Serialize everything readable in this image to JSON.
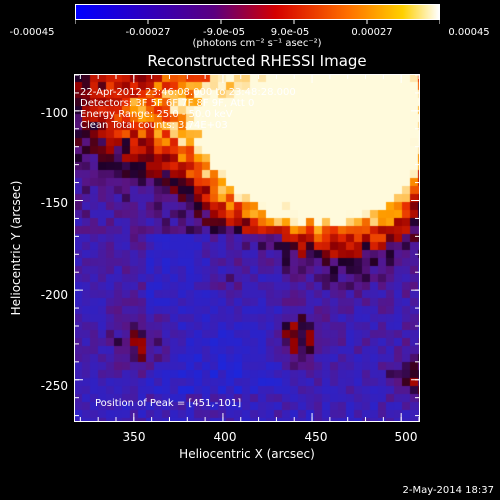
{
  "colorbar": {
    "tick_labels": [
      "-0.00045",
      "-0.00027",
      "-9.0e-05",
      "9.0e-05",
      "0.00027",
      "0.00045"
    ],
    "tick_values": [
      -0.00045,
      -0.00027,
      -9e-05,
      9e-05,
      0.00027,
      0.00045
    ],
    "unit_label": "(photons cm⁻² s⁻¹ asec⁻²)",
    "colors": [
      "#0000ff",
      "#5a0080",
      "#cc0000",
      "#ff6000",
      "#ffffff"
    ]
  },
  "title": "Reconstructed RHESSI Image",
  "info_lines": [
    "22-Apr-2012 23:46:08.000 to 23:48:28.000",
    "Detectors: 3F 5F 6F 7F 8F 9F, Att 0",
    "Energy Range: 25.0 - 50.0 keV",
    "Clean    Total counts: 3.74E+03"
  ],
  "peak_label": "Position of Peak = [451,-101]",
  "axes": {
    "x_title": "Heliocentric X (arcsec)",
    "y_title": "Heliocentric Y (arcsec)",
    "x_ticks": [
      "350",
      "400",
      "450",
      "500"
    ],
    "x_tick_values": [
      350,
      400,
      450,
      500
    ],
    "y_ticks": [
      "-100",
      "-150",
      "-200",
      "-250"
    ],
    "y_tick_values": [
      -100,
      -150,
      -200,
      -250
    ],
    "x_range": [
      317,
      510
    ],
    "y_range": [
      -273,
      -80
    ]
  },
  "timestamp": "2-May-2014 18:37"
}
